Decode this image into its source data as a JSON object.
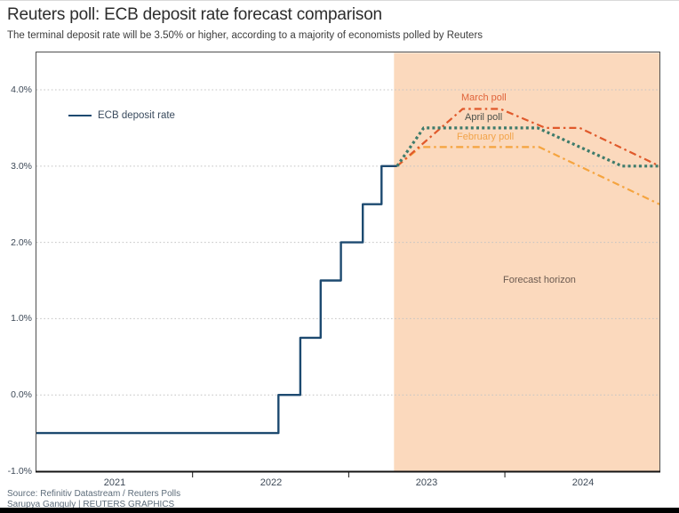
{
  "header": {
    "title": "Reuters poll: ECB deposit rate forecast comparison",
    "subtitle": "The terminal deposit rate will be 3.50% or higher, according to a majority of economists polled by Reuters"
  },
  "legend": {
    "label": "ECB deposit rate"
  },
  "annotations": {
    "forecast_horizon": "Forecast horizon"
  },
  "footer": {
    "source": "Source: Refinitiv Datastream / Reuters Polls",
    "credit": "Sarupya Ganguly | REUTERS GRAPHICS"
  },
  "colors": {
    "ecb_navy": "#1d4a70",
    "march_orange": "#e0592b",
    "april_teal": "#3e7b6b",
    "february_amber": "#f5a43f",
    "forecast_region": "#fbd9bd",
    "gridline": "#c4c4c4",
    "plot_border": "#4f4f4f",
    "axis_line": "#141414",
    "bottom_bar": "#000000"
  },
  "chart_data": {
    "type": "line",
    "title": "Reuters poll: ECB deposit rate forecast comparison",
    "xlabel": "",
    "ylabel": "",
    "xlim": [
      2021.0,
      2024.99
    ],
    "ylim": [
      -1.0,
      4.49
    ],
    "grid": "dotted-horizontal",
    "legend_position": "upper-left-inside",
    "forecast_region": {
      "start": 2023.29,
      "end": 2024.99,
      "label": "Forecast horizon"
    },
    "x_ticks": [
      2022,
      2023,
      2024
    ],
    "x_year_labels": [
      {
        "label": "2021",
        "center": 2021.5
      },
      {
        "label": "2022",
        "center": 2022.5
      },
      {
        "label": "2023",
        "center": 2023.5
      },
      {
        "label": "2024",
        "center": 2024.5
      }
    ],
    "y_ticks": [
      {
        "label": "4.0%",
        "value": 4.0,
        "gridline": true
      },
      {
        "label": "3.0%",
        "value": 3.0,
        "gridline": true
      },
      {
        "label": "2.0%",
        "value": 2.0,
        "gridline": true
      },
      {
        "label": "1.0%",
        "value": 1.0,
        "gridline": true
      },
      {
        "label": "0.0%",
        "value": 0.0,
        "gridline": true
      },
      {
        "label": "-1.0%",
        "value": -1.0,
        "gridline": false
      }
    ],
    "series": [
      {
        "id": "ecb",
        "name": "ECB deposit rate",
        "color": "#1d4a70",
        "style": "solid",
        "width": 2.4,
        "points": [
          [
            2021.0,
            -0.5
          ],
          [
            2022.55,
            -0.5
          ],
          [
            2022.55,
            0.0
          ],
          [
            2022.69,
            0.0
          ],
          [
            2022.69,
            0.75
          ],
          [
            2022.82,
            0.75
          ],
          [
            2022.82,
            1.5
          ],
          [
            2022.95,
            1.5
          ],
          [
            2022.95,
            2.0
          ],
          [
            2023.09,
            2.0
          ],
          [
            2023.09,
            2.5
          ],
          [
            2023.21,
            2.5
          ],
          [
            2023.21,
            3.0
          ],
          [
            2023.31,
            3.0
          ]
        ]
      },
      {
        "id": "february_poll",
        "name": "February poll",
        "color": "#f5a43f",
        "label_color": "#f2a44a",
        "style": "dashdot",
        "width": 2.2,
        "points": [
          [
            2023.31,
            3.0
          ],
          [
            2023.46,
            3.25
          ],
          [
            2024.22,
            3.25
          ],
          [
            2024.99,
            2.5
          ]
        ]
      },
      {
        "id": "march_poll",
        "name": "March poll",
        "color": "#e0592b",
        "label_color": "#e0633a",
        "style": "dashdot",
        "width": 2.2,
        "points": [
          [
            2023.31,
            3.0
          ],
          [
            2023.73,
            3.75
          ],
          [
            2023.97,
            3.75
          ],
          [
            2024.26,
            3.5
          ],
          [
            2024.48,
            3.5
          ],
          [
            2024.99,
            3.0
          ]
        ]
      },
      {
        "id": "april_poll",
        "name": "April poll",
        "color": "#3e7b6b",
        "label_color": "#4a5049",
        "style": "dotted",
        "width": 3.2,
        "points": [
          [
            2023.31,
            3.0
          ],
          [
            2023.48,
            3.5
          ],
          [
            2024.21,
            3.5
          ],
          [
            2024.75,
            3.0
          ],
          [
            2024.99,
            3.0
          ]
        ]
      }
    ]
  }
}
